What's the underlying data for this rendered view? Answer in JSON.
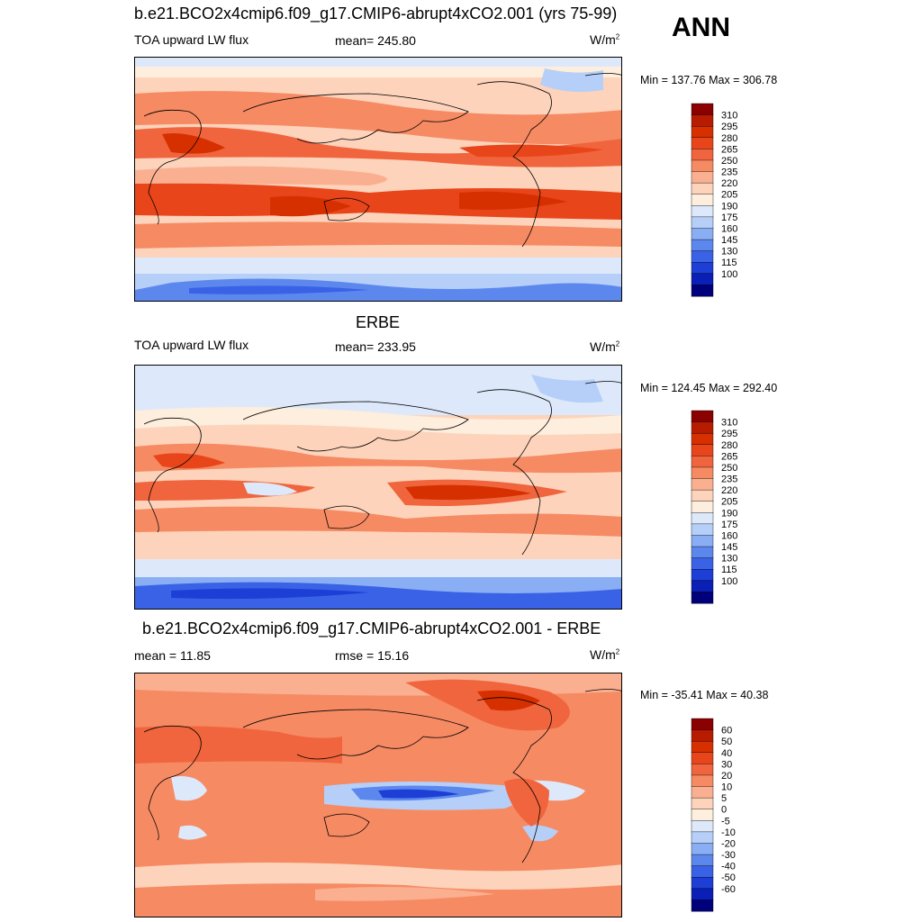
{
  "season": "ANN",
  "panels": [
    {
      "title": "b.e21.BCO2x4cmip6.f09_g17.CMIP6-abrupt4xCO2.001 (yrs 75-99)",
      "left_label": "TOA upward LW flux",
      "center_label": "mean= 245.80",
      "units": "W/m",
      "units_sup": "2",
      "minmax": "Min = 137.76 Max = 306.78"
    },
    {
      "title": "ERBE",
      "left_label": "TOA upward LW flux",
      "center_label": "mean= 233.95",
      "units": "W/m",
      "units_sup": "2",
      "minmax": "Min = 124.45 Max = 292.40"
    },
    {
      "title": "b.e21.BCO2x4cmip6.f09_g17.CMIP6-abrupt4xCO2.001 - ERBE",
      "left_label": "mean =  11.85",
      "center_label": "rmse =  15.16",
      "units": "W/m",
      "units_sup": "2",
      "minmax": "Min = -35.41 Max =  40.38"
    }
  ],
  "colorbars": {
    "absolute": {
      "labels": [
        "310",
        "295",
        "280",
        "265",
        "250",
        "235",
        "220",
        "205",
        "190",
        "175",
        "160",
        "145",
        "130",
        "115",
        "100"
      ],
      "colors": [
        "#8b0000",
        "#b81c00",
        "#d73000",
        "#e8461a",
        "#f0653d",
        "#f68a63",
        "#fab090",
        "#fdd3bb",
        "#fdeedd",
        "#dde9fb",
        "#b6cff8",
        "#8aaef3",
        "#5c88ee",
        "#3a62e6",
        "#1d3fd6",
        "#0a1fb5",
        "#00007a"
      ]
    },
    "difference": {
      "labels": [
        "60",
        "50",
        "40",
        "30",
        "20",
        "10",
        "5",
        "0",
        "-5",
        "-10",
        "-20",
        "-30",
        "-40",
        "-50",
        "-60"
      ],
      "colors": [
        "#8b0000",
        "#b81c00",
        "#d73000",
        "#e8461a",
        "#f0653d",
        "#f68a63",
        "#fab090",
        "#fdd3bb",
        "#fdeedd",
        "#dde9fb",
        "#b6cff8",
        "#8aaef3",
        "#5c88ee",
        "#3a62e6",
        "#1d3fd6",
        "#0a1fb5",
        "#00007a"
      ]
    }
  },
  "chart_data": [
    {
      "type": "heatmap",
      "title": "b.e21.BCO2x4cmip6.f09_g17.CMIP6-abrupt4xCO2.001 (yrs 75-99)",
      "variable": "TOA upward LW flux",
      "units": "W/m2",
      "mean": 245.8,
      "min": 137.76,
      "max": 306.78,
      "levels": [
        100,
        115,
        130,
        145,
        160,
        175,
        190,
        205,
        220,
        235,
        250,
        265,
        280,
        295,
        310
      ]
    },
    {
      "type": "heatmap",
      "title": "ERBE",
      "variable": "TOA upward LW flux",
      "units": "W/m2",
      "mean": 233.95,
      "min": 124.45,
      "max": 292.4,
      "levels": [
        100,
        115,
        130,
        145,
        160,
        175,
        190,
        205,
        220,
        235,
        250,
        265,
        280,
        295,
        310
      ]
    },
    {
      "type": "heatmap",
      "title": "b.e21.BCO2x4cmip6.f09_g17.CMIP6-abrupt4xCO2.001 - ERBE",
      "units": "W/m2",
      "mean": 11.85,
      "rmse": 15.16,
      "min": -35.41,
      "max": 40.38,
      "levels": [
        -60,
        -50,
        -40,
        -30,
        -20,
        -10,
        -5,
        0,
        5,
        10,
        20,
        30,
        40,
        50,
        60
      ]
    }
  ]
}
